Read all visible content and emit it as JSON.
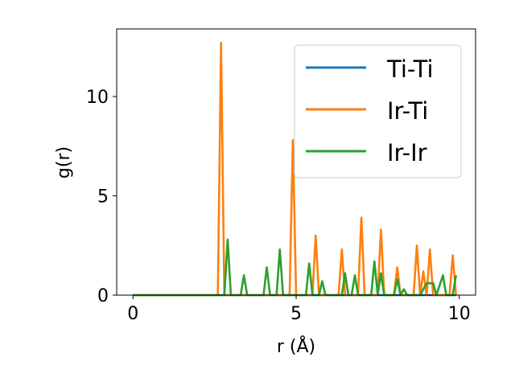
{
  "chart_data": {
    "type": "line",
    "xlabel": "r (Å)",
    "ylabel": "g(r)",
    "xlim": [
      -0.5,
      10.5
    ],
    "ylim": [
      0,
      13.4
    ],
    "xticks": [
      0,
      5,
      10
    ],
    "yticks": [
      0,
      5,
      10
    ],
    "xtick_labels": [
      "0",
      "5",
      "10"
    ],
    "ytick_labels": [
      "0",
      "5",
      "10"
    ],
    "grid": false,
    "legend_position": "top-right",
    "series": [
      {
        "name": "Ti-Ti",
        "color": "#1f77b4",
        "points": [
          [
            0,
            0
          ],
          [
            9.9,
            0
          ]
        ]
      },
      {
        "name": "Ir-Ti",
        "color": "#ff7f0e",
        "points": [
          [
            0,
            0
          ],
          [
            2.6,
            0
          ],
          [
            2.7,
            12.7
          ],
          [
            2.8,
            0
          ],
          [
            4.8,
            0
          ],
          [
            4.9,
            7.8
          ],
          [
            5.0,
            0
          ],
          [
            5.5,
            0
          ],
          [
            5.6,
            3.0
          ],
          [
            5.7,
            0
          ],
          [
            6.3,
            0
          ],
          [
            6.4,
            2.3
          ],
          [
            6.5,
            0
          ],
          [
            6.9,
            0
          ],
          [
            7.0,
            3.9
          ],
          [
            7.1,
            0
          ],
          [
            7.5,
            0
          ],
          [
            7.6,
            3.3
          ],
          [
            7.7,
            0
          ],
          [
            8.0,
            0
          ],
          [
            8.1,
            1.4
          ],
          [
            8.2,
            0
          ],
          [
            8.6,
            0
          ],
          [
            8.7,
            2.5
          ],
          [
            8.8,
            0
          ],
          [
            8.9,
            1.2
          ],
          [
            9.0,
            0
          ],
          [
            9.1,
            2.3
          ],
          [
            9.2,
            0
          ],
          [
            9.7,
            0
          ],
          [
            9.8,
            2.0
          ],
          [
            9.9,
            0
          ]
        ]
      },
      {
        "name": "Ir-Ir",
        "color": "#2ca02c",
        "points": [
          [
            0,
            0
          ],
          [
            2.8,
            0
          ],
          [
            2.9,
            2.8
          ],
          [
            3.0,
            0
          ],
          [
            3.3,
            0
          ],
          [
            3.4,
            1.0
          ],
          [
            3.5,
            0
          ],
          [
            4.0,
            0
          ],
          [
            4.1,
            1.4
          ],
          [
            4.2,
            0
          ],
          [
            4.4,
            0
          ],
          [
            4.5,
            2.3
          ],
          [
            4.6,
            0
          ],
          [
            5.3,
            0
          ],
          [
            5.4,
            1.6
          ],
          [
            5.5,
            0
          ],
          [
            5.7,
            0
          ],
          [
            5.8,
            0.7
          ],
          [
            5.9,
            0
          ],
          [
            6.4,
            0
          ],
          [
            6.5,
            1.1
          ],
          [
            6.6,
            0
          ],
          [
            6.7,
            0
          ],
          [
            6.8,
            1.0
          ],
          [
            6.9,
            0
          ],
          [
            7.3,
            0
          ],
          [
            7.4,
            1.7
          ],
          [
            7.5,
            0
          ],
          [
            7.6,
            1.1
          ],
          [
            7.7,
            0
          ],
          [
            8.0,
            0
          ],
          [
            8.1,
            0.8
          ],
          [
            8.2,
            0
          ],
          [
            8.3,
            0.3
          ],
          [
            8.4,
            0
          ],
          [
            8.8,
            0
          ],
          [
            8.9,
            0.3
          ],
          [
            9.0,
            0.6
          ],
          [
            9.2,
            0.6
          ],
          [
            9.3,
            0
          ],
          [
            9.5,
            1.0
          ],
          [
            9.6,
            0
          ],
          [
            9.8,
            0
          ],
          [
            9.9,
            1.0
          ]
        ]
      }
    ]
  }
}
